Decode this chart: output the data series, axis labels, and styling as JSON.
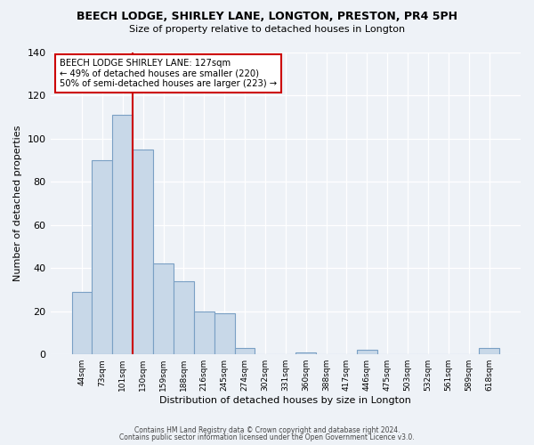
{
  "title1": "BEECH LODGE, SHIRLEY LANE, LONGTON, PRESTON, PR4 5PH",
  "title2": "Size of property relative to detached houses in Longton",
  "xlabel": "Distribution of detached houses by size in Longton",
  "ylabel": "Number of detached properties",
  "bar_labels": [
    "44sqm",
    "73sqm",
    "101sqm",
    "130sqm",
    "159sqm",
    "188sqm",
    "216sqm",
    "245sqm",
    "274sqm",
    "302sqm",
    "331sqm",
    "360sqm",
    "388sqm",
    "417sqm",
    "446sqm",
    "475sqm",
    "503sqm",
    "532sqm",
    "561sqm",
    "589sqm",
    "618sqm"
  ],
  "bar_values": [
    29,
    90,
    111,
    95,
    42,
    34,
    20,
    19,
    3,
    0,
    0,
    1,
    0,
    0,
    2,
    0,
    0,
    0,
    0,
    0,
    3
  ],
  "bar_color": "#c8d8e8",
  "bar_edgecolor": "#7aa0c4",
  "ylim": [
    0,
    140
  ],
  "yticks": [
    0,
    20,
    40,
    60,
    80,
    100,
    120,
    140
  ],
  "vline_x": 2.5,
  "vline_color": "#cc0000",
  "annotation_title": "BEECH LODGE SHIRLEY LANE: 127sqm",
  "annotation_line1": "← 49% of detached houses are smaller (220)",
  "annotation_line2": "50% of semi-detached houses are larger (223) →",
  "annotation_box_color": "#ffffff",
  "annotation_box_edgecolor": "#cc0000",
  "footer1": "Contains HM Land Registry data © Crown copyright and database right 2024.",
  "footer2": "Contains public sector information licensed under the Open Government Licence v3.0.",
  "bg_color": "#eef2f7",
  "plot_bg_color": "#eef2f7"
}
